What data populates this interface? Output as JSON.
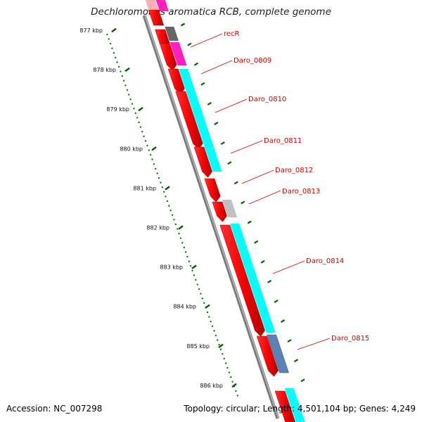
{
  "title": "Dechloromonas aromatica RCB, complete genome",
  "footer": {
    "accession": "Accession: NC_007298",
    "topology": "Topology: circular; Length: 4,501,104 bp; Genes: 4,249"
  },
  "scale": {
    "unit": "kbp",
    "labels": [
      "877 kbp",
      "878 kbp",
      "879 kbp",
      "880 kbp",
      "881 kbp",
      "882 kbp",
      "883 kbp",
      "884 kbp",
      "885 kbp",
      "886 kbp"
    ]
  },
  "gene_labels": [
    "recR",
    "Daro_0809",
    "Daro_0810",
    "Daro_0811",
    "Daro_0812",
    "Daro_0813",
    "Daro_0814",
    "Daro_0815"
  ],
  "colors": {
    "cds": "#ff0000",
    "cds_dark": "#b30000",
    "category_cyan": "#00ffff",
    "category_magenta": "#ff1ebe",
    "category_grey": "#666666",
    "category_lightgrey": "#c0c0c0",
    "category_steelblue": "#5a82b4",
    "backbone": "#808080",
    "scale_dots": "#006400",
    "label_color": "#cc0000"
  }
}
